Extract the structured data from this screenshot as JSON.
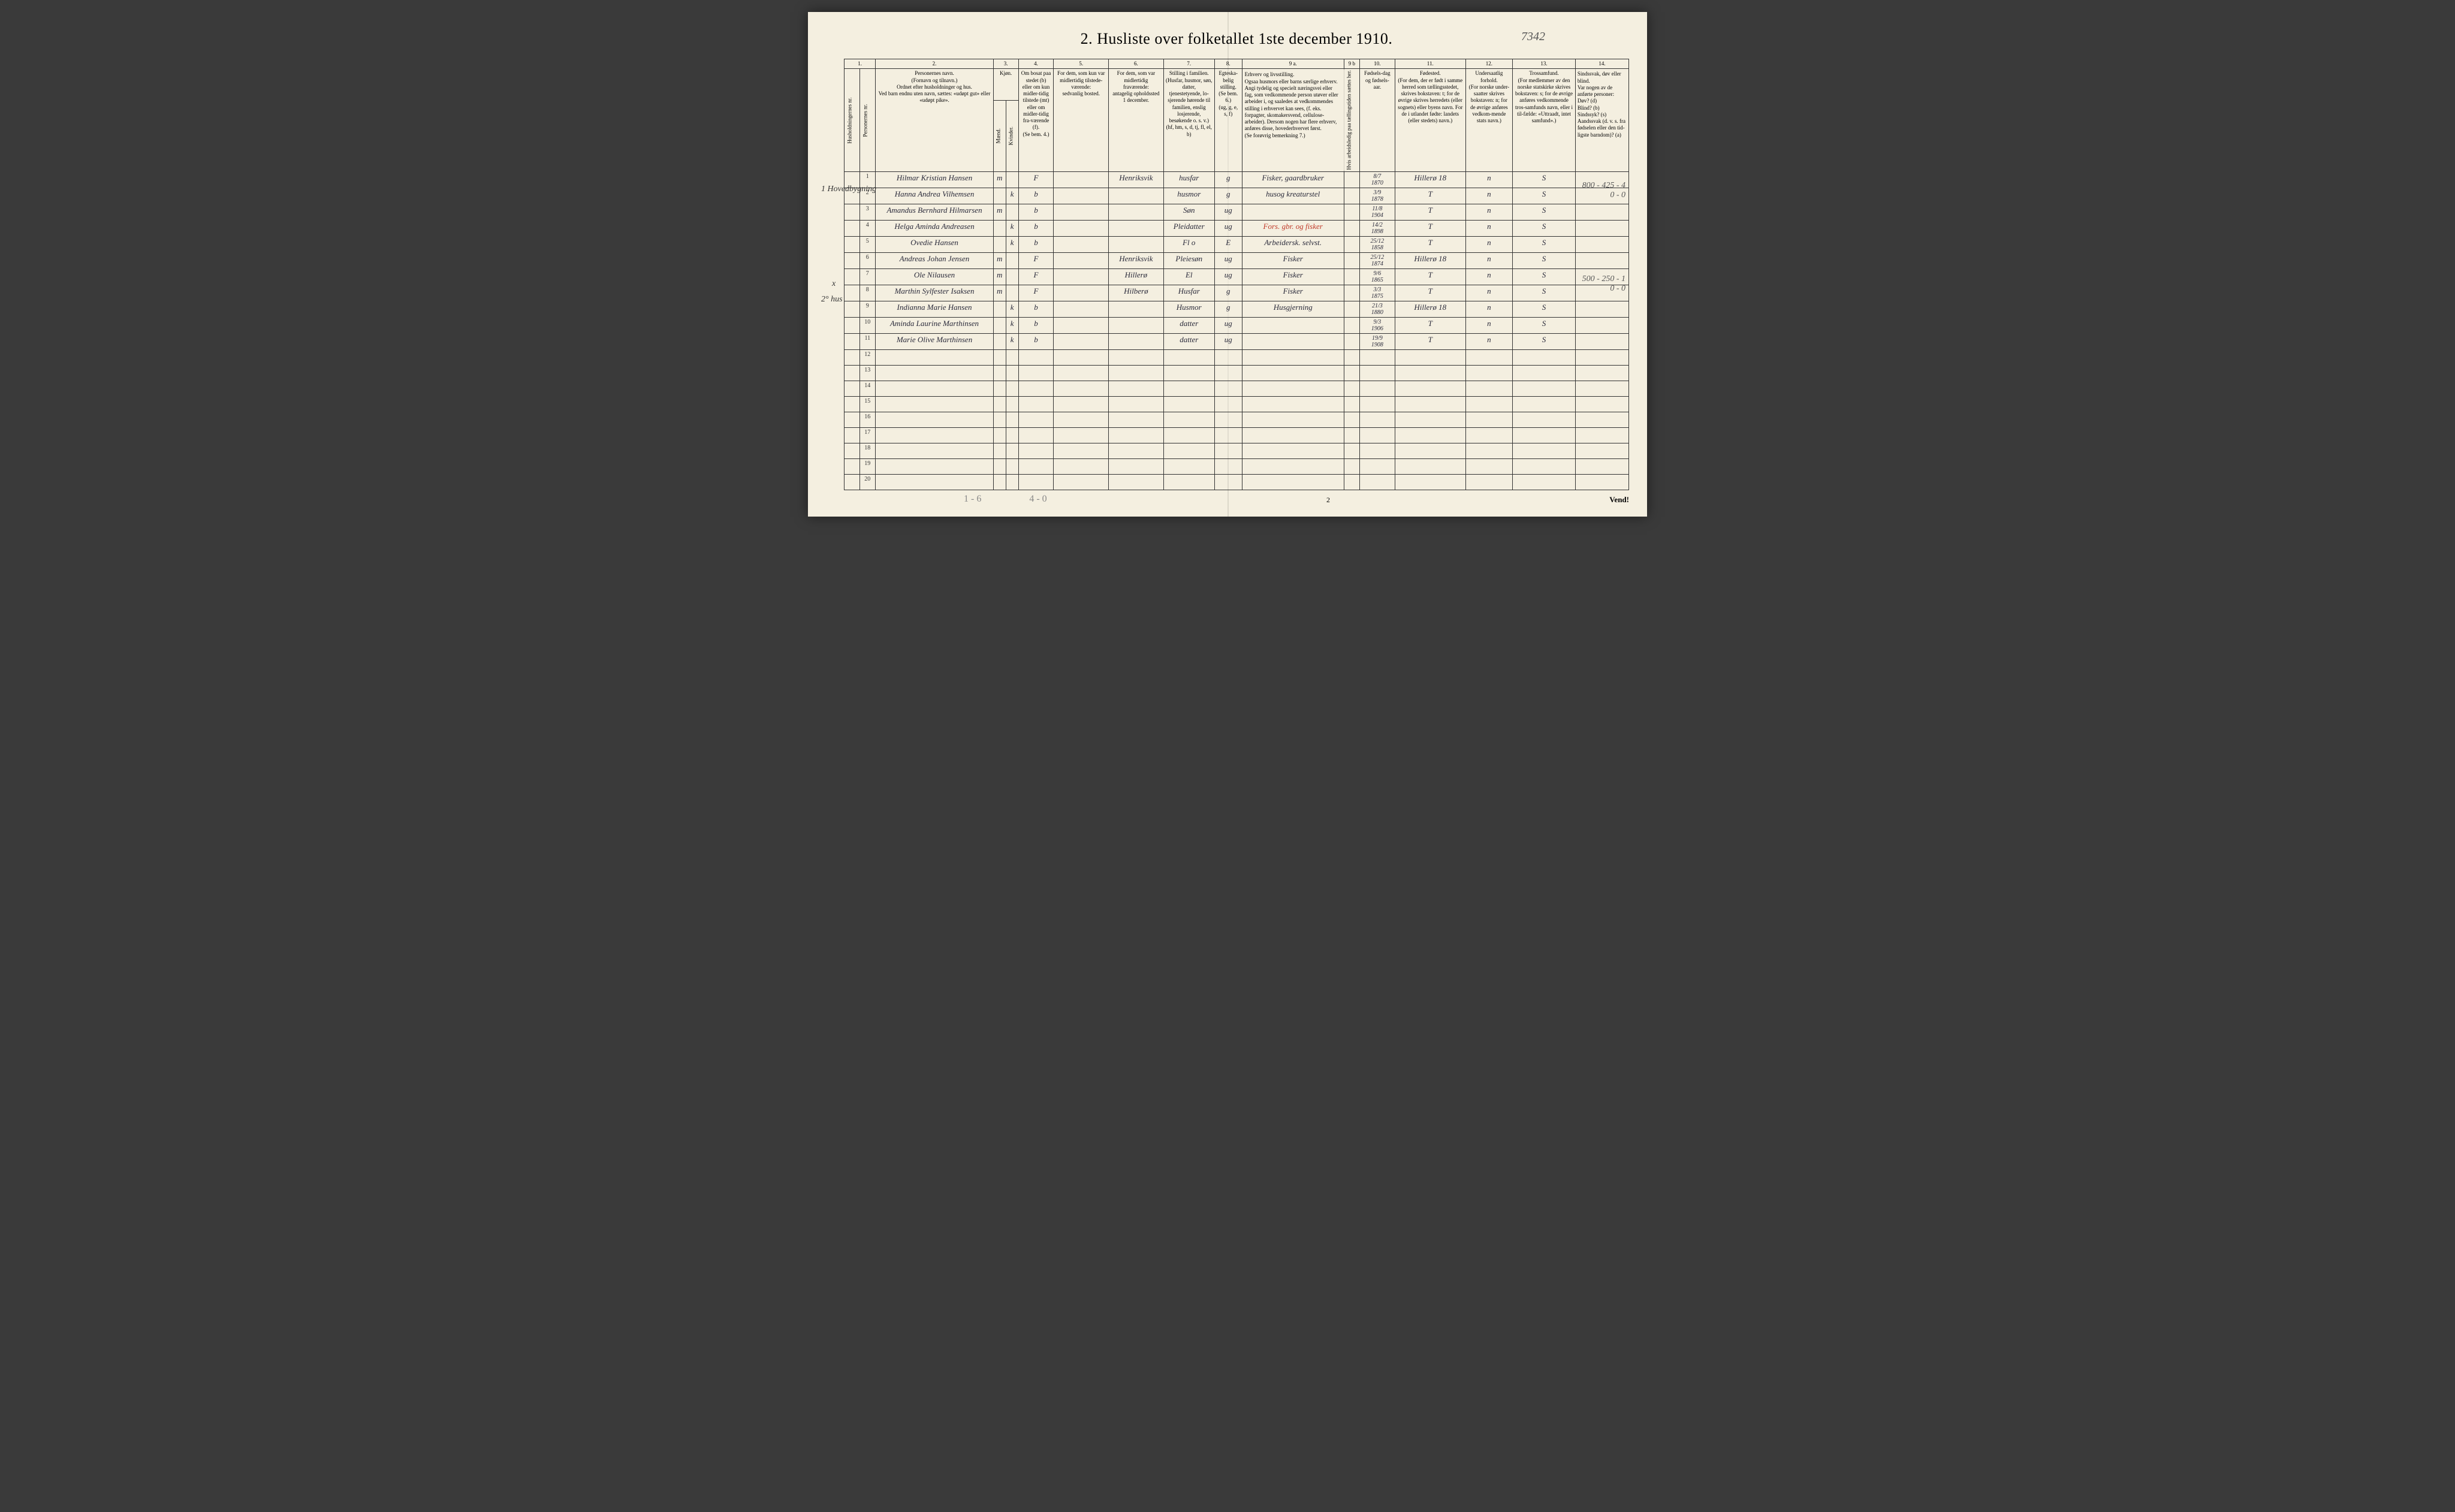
{
  "title": "2.  Husliste over folketallet 1ste december 1910.",
  "handwritten_page_ref": "7342",
  "column_numbers": [
    "1.",
    "2.",
    "3.",
    "4.",
    "5.",
    "6.",
    "7.",
    "8.",
    "9 a.",
    "9 b",
    "10.",
    "11.",
    "12.",
    "13.",
    "14."
  ],
  "headers": {
    "c1a": "Husholdningernes nr.",
    "c1b": "Personernes nr.",
    "c2": "Personernes navn.\n(Fornavn og tilnavn.)\nOrdnet efter husholdninger og hus.\nVed barn endnu uten navn, sættes: «udøpt gut» eller «udøpt pike».",
    "c3_top": "Kjøn.",
    "c3a": "Mænd.",
    "c3b": "Kvinder.",
    "c3_foot": "m.  k.",
    "c4": "Om bosat paa stedet (b) eller om kun midler-tidig tilstede (mt) eller om midler-tidig fra-værende (f).\n(Se bem. 4.)",
    "c5": "For dem, som kun var midlertidig tilstede-værende:\nsedvanlig bosted.",
    "c6": "For dem, som var midlertidig fraværende:\nantagelig opholdssted 1 december.",
    "c7": "Stilling i familien.\n(Husfar, husmor, søn, datter, tjenestetyende, lo-sjerende hørende til familien, enslig losjerende, besøkende o. s. v.)\n(hf, hm, s, d, tj, fl, el, b)",
    "c8": "Egteska-belig stilling.\n(Se bem. 6.)\n(ug, g, e, s, f)",
    "c9a": "Erhverv og livsstilling.\nOgsaa husmors eller barns særlige erhverv.\nAngi tydelig og specielt næringsvei eller fag, som vedkommende person utøver eller arbeider i, og saaledes at vedkommendes stilling i erhvervet kan sees, (f. eks. forpagter, skomakersvend, cellulose-arbeider). Dersom nogen har flere erhverv, anføres disse, hovederhvervet først.\n(Se forøvrig bemerkning 7.)",
    "c9b": "Hvis arbeidsledig paa tællingstiden sættes her.",
    "c10": "Fødsels-dag og fødsels-aar.",
    "c11": "Fødested.\n(For dem, der er født i samme herred som tællingsstedet, skrives bokstaven: t; for de øvrige skrives herredets (eller sognets) eller byens navn. For de i utlandet fødte: landets (eller stedets) navn.)",
    "c12": "Undersaatlig forhold.\n(For norske under-saatter skrives bokstaven: n; for de øvrige anføres vedkom-mende stats navn.)",
    "c13": "Trossamfund.\n(For medlemmer av den norske statskirke skrives bokstaven: s; for de øvrige anføres vedkommende tros-samfunds navn, eller i til-fælde: «Uttraadt, intet samfund».)",
    "c14": "Sindssvak, døv eller blind.\nVar nogen av de anførte personer:\nDøv? (d)\nBlind? (b)\nSindssyk? (s)\nAandssvak (d. v. s. fra fødselen eller den tid-ligste barndom)? (a)"
  },
  "margin": {
    "hh1": "1  Hovedbygning",
    "x7": "x",
    "hh2": "2° hus",
    "right_top": "800 - 425 - 4\n0 - 0",
    "right_mid": "500 - 250 - 1\n0 - 0"
  },
  "rows": [
    {
      "n": "1",
      "name": "Hilmar Kristian Hansen",
      "mk": "m",
      "res": "F",
      "c5": "",
      "c6": "Henriksvik",
      "c7": "husfar",
      "c8": "g",
      "c9": "Fisker, gaardbruker",
      "c9b": "",
      "dob": "8/7\n1870",
      "fsted": "Hillerø 18",
      "c12": "n",
      "c13": "S",
      "c14": ""
    },
    {
      "n": "2",
      "name": "Hanna Andrea Vilhemsen",
      "mk": "k",
      "res": "b",
      "c5": "",
      "c6": "",
      "c7": "husmor",
      "c8": "g",
      "c9": "husog kreaturstel",
      "c9b": "",
      "dob": "3/9\n1878",
      "fsted": "T",
      "c12": "n",
      "c13": "S",
      "c14": ""
    },
    {
      "n": "3",
      "name": "Amandus Bernhard Hilmarsen",
      "mk": "m",
      "res": "b",
      "c5": "",
      "c6": "",
      "c7": "Søn",
      "c8": "ug",
      "c9": "",
      "c9b": "",
      "dob": "11/8\n1904",
      "fsted": "T",
      "c12": "n",
      "c13": "S",
      "c14": ""
    },
    {
      "n": "4",
      "name": "Helga Aminda Andreasen",
      "mk": "k",
      "res": "b",
      "c5": "",
      "c6": "",
      "c7": "Pleidatter",
      "c8": "ug",
      "c9": "Fors. gbr. og fisker",
      "c9red": true,
      "c9b": "",
      "dob": "14/2\n1898",
      "fsted": "T",
      "c12": "n",
      "c13": "S",
      "c14": ""
    },
    {
      "n": "5",
      "name": "Ovedie Hansen",
      "mk": "k",
      "res": "b",
      "c5": "",
      "c6": "",
      "c7": "Fl           o",
      "c8": "E",
      "c9": "Arbeidersk. selvst.",
      "c9b": "",
      "dob": "25/12\n1858",
      "fsted": "T",
      "c12": "n",
      "c13": "S",
      "c14": ""
    },
    {
      "n": "6",
      "name": "Andreas Johan Jensen",
      "mk": "m",
      "res": "F",
      "c5": "",
      "c6": "Henriksvik",
      "c7": "Pleiesøn",
      "c8": "ug",
      "c9": "Fisker",
      "c9b": "",
      "dob": "25/12\n1874",
      "fsted": "Hillerø 18",
      "c12": "n",
      "c13": "S",
      "c14": ""
    },
    {
      "n": "7",
      "name": "Ole Nilausen",
      "mk": "m",
      "res": "F",
      "c5": "",
      "c6": "Hillerø",
      "c7": "El",
      "c8": "ug",
      "c9": "Fisker",
      "c9b": "",
      "dob": "9/6\n1865",
      "fsted": "T",
      "c12": "n",
      "c13": "S",
      "c14": ""
    },
    {
      "n": "8",
      "name": "Marthin Sylfester Isaksen",
      "mk": "m",
      "res": "F",
      "c5": "",
      "c6": "Hilberø",
      "c7": "Husfar",
      "c8": "g",
      "c9": "Fisker",
      "c9b": "",
      "dob": "3/3\n1875",
      "fsted": "T",
      "c12": "n",
      "c13": "S",
      "c14": ""
    },
    {
      "n": "9",
      "name": "Indianna Marie Hansen",
      "mk": "k",
      "res": "b",
      "c5": "",
      "c6": "",
      "c7": "Husmor",
      "c8": "g",
      "c9": "Husgjerning",
      "c9b": "",
      "dob": "21/3\n1880",
      "fsted": "Hillerø 18",
      "c12": "n",
      "c13": "S",
      "c14": ""
    },
    {
      "n": "10",
      "name": "Aminda Laurine Marthinsen",
      "mk": "k",
      "res": "b",
      "c5": "",
      "c6": "",
      "c7": "datter",
      "c8": "ug",
      "c9": "",
      "c9b": "",
      "dob": "9/3\n1906",
      "fsted": "T",
      "c12": "n",
      "c13": "S",
      "c14": ""
    },
    {
      "n": "11",
      "name": "Marie Olive Marthinsen",
      "mk": "k",
      "res": "b",
      "c5": "",
      "c6": "",
      "c7": "datter",
      "c8": "ug",
      "c9": "",
      "c9b": "",
      "dob": "19/9\n1908",
      "fsted": "T",
      "c12": "n",
      "c13": "S",
      "c14": ""
    }
  ],
  "empty_rows": [
    "12",
    "13",
    "14",
    "15",
    "16",
    "17",
    "18",
    "19",
    "20"
  ],
  "footer": {
    "pencil_left": "1 - 6",
    "pencil_mid": "4 - 0",
    "page": "2",
    "vend": "Vend!"
  },
  "col_widths_pct": [
    2,
    2,
    15,
    1.6,
    1.6,
    4.5,
    7,
    7,
    6.5,
    3.5,
    13,
    2,
    4.5,
    9,
    6,
    8,
    6.8
  ],
  "colors": {
    "paper": "#f4efe0",
    "ink": "#2a2a3a",
    "rule": "#333333",
    "red": "#c03a2a",
    "pencil": "#888888"
  }
}
